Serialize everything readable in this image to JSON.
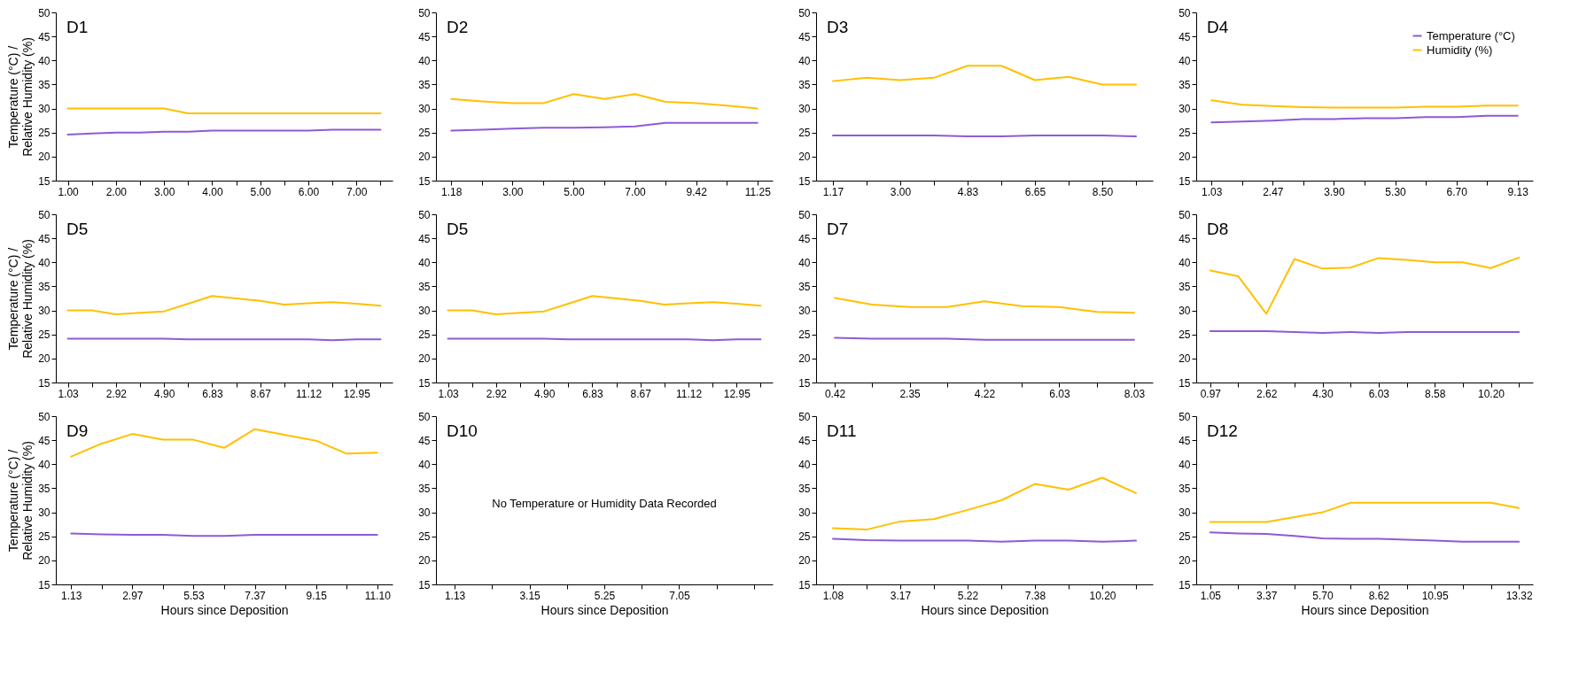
{
  "chart_data": [
    {
      "type": "line",
      "title": "D1",
      "ylabel": "Temperature (°C) / Relative Humidity (%)",
      "ylim": [
        15,
        50
      ],
      "yticks": [
        15,
        20,
        25,
        30,
        35,
        40,
        45,
        50
      ],
      "grid": false,
      "categories": [
        "1.00",
        null,
        "2.00",
        null,
        "3.00",
        null,
        "4.00",
        null,
        "5.00",
        null,
        "6.00",
        null,
        "7.00",
        null
      ],
      "series": [
        {
          "color": "#8e5bd6",
          "values": [
            24.6,
            24.8,
            25,
            25,
            25.2,
            25.2,
            25.4,
            25.4,
            25.4,
            25.4,
            25.4,
            25.6,
            25.6,
            25.6
          ]
        },
        {
          "color": "#ffc000",
          "values": [
            30,
            30,
            30,
            30,
            30,
            29,
            29,
            29,
            29,
            29,
            29,
            29,
            29,
            29
          ]
        }
      ]
    },
    {
      "type": "line",
      "title": "D2",
      "ylim": [
        15,
        50
      ],
      "yticks": [
        15,
        20,
        25,
        30,
        35,
        40,
        45,
        50
      ],
      "grid": false,
      "categories": [
        "1.18",
        null,
        "3.00",
        null,
        "5.00",
        null,
        "7.00",
        null,
        "9.42",
        null,
        "11.25"
      ],
      "series": [
        {
          "color": "#8e5bd6",
          "values": [
            25.4,
            25.6,
            25.8,
            26,
            26,
            26.1,
            26.3,
            27,
            27,
            27,
            27
          ]
        },
        {
          "color": "#ffc000",
          "values": [
            32,
            31.5,
            31.1,
            31.1,
            33,
            32,
            33,
            31.4,
            31.1,
            30.6,
            30
          ]
        }
      ]
    },
    {
      "type": "line",
      "title": "D3",
      "ylim": [
        15,
        50
      ],
      "yticks": [
        15,
        20,
        25,
        30,
        35,
        40,
        45,
        50
      ],
      "grid": false,
      "categories": [
        "1.17",
        null,
        "3.00",
        null,
        "4.83",
        null,
        "6.65",
        null,
        "8.50",
        null
      ],
      "series": [
        {
          "color": "#8e5bd6",
          "values": [
            24.4,
            24.4,
            24.4,
            24.4,
            24.2,
            24.2,
            24.4,
            24.4,
            24.4,
            24.2
          ]
        },
        {
          "color": "#ffc000",
          "values": [
            35.7,
            36.4,
            35.9,
            36.4,
            38.9,
            38.9,
            35.9,
            36.6,
            35,
            35
          ]
        }
      ]
    },
    {
      "type": "line",
      "title": "D4",
      "ylim": [
        15,
        50
      ],
      "yticks": [
        15,
        20,
        25,
        30,
        35,
        40,
        45,
        50
      ],
      "grid": false,
      "legend": "top right",
      "categories": [
        "1.03",
        null,
        "2.47",
        null,
        "3.90",
        null,
        "5.30",
        null,
        "6.70",
        null,
        "9.13"
      ],
      "series": [
        {
          "name": "Temperature (°C)",
          "color": "#8e5bd6",
          "values": [
            27.1,
            27.3,
            27.5,
            27.8,
            27.8,
            28,
            28,
            28.2,
            28.2,
            28.5,
            28.5
          ]
        },
        {
          "name": "Humidity (%)",
          "color": "#ffc000",
          "values": [
            31.7,
            30.8,
            30.5,
            30.3,
            30.2,
            30.2,
            30.2,
            30.4,
            30.4,
            30.6,
            30.6
          ]
        }
      ]
    },
    {
      "type": "line",
      "title": "D5",
      "ylabel": "Temperature (°C) / Relative Humidity (%)",
      "ylim": [
        15,
        50
      ],
      "yticks": [
        15,
        20,
        25,
        30,
        35,
        40,
        45,
        50
      ],
      "grid": false,
      "categories": [
        "1.03",
        null,
        "2.92",
        null,
        "4.90",
        null,
        "6.83",
        null,
        "8.67",
        null,
        "11.12",
        null,
        "12.95",
        null
      ],
      "series": [
        {
          "color": "#8e5bd6",
          "values": [
            24.1,
            24.1,
            24.1,
            24.1,
            24.1,
            24,
            24,
            24,
            24,
            24,
            24,
            23.8,
            24,
            24
          ]
        },
        {
          "color": "#ffc000",
          "values": [
            30,
            30,
            29.2,
            29.5,
            29.8,
            31.4,
            33,
            32.5,
            32,
            31.2,
            31.5,
            31.7,
            31.4,
            31
          ]
        }
      ]
    },
    {
      "type": "line",
      "title": "D5",
      "ylim": [
        15,
        50
      ],
      "yticks": [
        15,
        20,
        25,
        30,
        35,
        40,
        45,
        50
      ],
      "grid": false,
      "categories": [
        "1.03",
        null,
        "2.92",
        null,
        "4.90",
        null,
        "6.83",
        null,
        "8.67",
        null,
        "11.12",
        null,
        "12.95",
        null
      ],
      "series": [
        {
          "color": "#8e5bd6",
          "values": [
            24.1,
            24.1,
            24.1,
            24.1,
            24.1,
            24,
            24,
            24,
            24,
            24,
            24,
            23.8,
            24,
            24
          ]
        },
        {
          "color": "#ffc000",
          "values": [
            30,
            30,
            29.2,
            29.5,
            29.8,
            31.4,
            33,
            32.5,
            32,
            31.2,
            31.5,
            31.7,
            31.4,
            31
          ]
        }
      ]
    },
    {
      "type": "line",
      "title": "D7",
      "ylim": [
        15,
        50
      ],
      "yticks": [
        15,
        20,
        25,
        30,
        35,
        40,
        45,
        50
      ],
      "grid": false,
      "categories": [
        "0.42",
        null,
        "2.35",
        null,
        "4.22",
        null,
        "6.03",
        null,
        "8.03"
      ],
      "series": [
        {
          "color": "#8e5bd6",
          "values": [
            24.3,
            24.1,
            24.1,
            24.1,
            23.9,
            23.9,
            23.9,
            23.9,
            23.9
          ]
        },
        {
          "color": "#ffc000",
          "values": [
            32.6,
            31.2,
            30.7,
            30.7,
            31.9,
            30.9,
            30.7,
            29.7,
            29.5
          ]
        }
      ]
    },
    {
      "type": "line",
      "title": "D8",
      "ylim": [
        15,
        50
      ],
      "yticks": [
        15,
        20,
        25,
        30,
        35,
        40,
        45,
        50
      ],
      "grid": false,
      "categories": [
        "0.97",
        null,
        "2.62",
        null,
        "4.30",
        null,
        "6.03",
        null,
        "8.58",
        null,
        "10.20",
        null
      ],
      "series": [
        {
          "color": "#8e5bd6",
          "values": [
            25.7,
            25.7,
            25.7,
            25.5,
            25.3,
            25.5,
            25.3,
            25.5,
            25.5,
            25.5,
            25.5,
            25.5
          ]
        },
        {
          "color": "#ffc000",
          "values": [
            38.3,
            37.1,
            29.3,
            40.7,
            38.7,
            38.9,
            40.9,
            40.5,
            40,
            40,
            38.8,
            41
          ]
        }
      ]
    },
    {
      "type": "line",
      "title": "D9",
      "ylabel": "Temperature (°C) / Relative Humidity (%)",
      "xlabel": "Hours since Deposition",
      "ylim": [
        15,
        50
      ],
      "yticks": [
        15,
        20,
        25,
        30,
        35,
        40,
        45,
        50
      ],
      "grid": false,
      "categories": [
        "1.13",
        null,
        "2.97",
        null,
        "5.53",
        null,
        "7.37",
        null,
        "9.15",
        null,
        "11.10"
      ],
      "series": [
        {
          "color": "#8e5bd6",
          "values": [
            25.6,
            25.4,
            25.3,
            25.3,
            25.1,
            25.1,
            25.3,
            25.3,
            25.3,
            25.3,
            25.3
          ]
        },
        {
          "color": "#ffc000",
          "values": [
            41.6,
            44.3,
            46.3,
            45.1,
            45.1,
            43.4,
            47.3,
            46.1,
            44.9,
            42.2,
            42.4
          ]
        }
      ]
    },
    {
      "type": "line",
      "title": "D10",
      "xlabel": "Hours since Deposition",
      "ylim": [
        15,
        50
      ],
      "yticks": [
        15,
        20,
        25,
        30,
        35,
        40,
        45,
        50
      ],
      "grid": false,
      "categories": [
        "1.13",
        null,
        "3.15",
        null,
        "5.25",
        null,
        "7.05",
        null,
        null
      ],
      "annotations": [
        "No Temperature or Humidity Data Recorded"
      ]
    },
    {
      "type": "line",
      "title": "D11",
      "xlabel": "Hours since Deposition",
      "ylim": [
        15,
        50
      ],
      "yticks": [
        15,
        20,
        25,
        30,
        35,
        40,
        45,
        50
      ],
      "grid": false,
      "categories": [
        "1.08",
        null,
        "3.17",
        null,
        "5.22",
        null,
        "7.38",
        null,
        "10.20",
        null
      ],
      "series": [
        {
          "color": "#8e5bd6",
          "values": [
            24.5,
            24.2,
            24.1,
            24.1,
            24.1,
            23.9,
            24.1,
            24.1,
            23.9,
            24.1
          ]
        },
        {
          "color": "#ffc000",
          "values": [
            26.7,
            26.4,
            28.1,
            28.6,
            30.5,
            32.5,
            35.9,
            34.7,
            37.2,
            34
          ]
        }
      ]
    },
    {
      "type": "line",
      "title": "D12",
      "xlabel": "Hours since Deposition",
      "ylim": [
        15,
        50
      ],
      "yticks": [
        15,
        20,
        25,
        30,
        35,
        40,
        45,
        50
      ],
      "grid": false,
      "categories": [
        "1.05",
        null,
        "3.37",
        null,
        "5.70",
        null,
        "8.62",
        null,
        "10.95",
        null,
        null,
        "13.32"
      ],
      "series": [
        {
          "color": "#8e5bd6",
          "values": [
            25.8,
            25.6,
            25.5,
            25.1,
            24.6,
            24.5,
            24.5,
            24.3,
            24.1,
            23.9,
            23.9,
            23.9
          ]
        },
        {
          "color": "#ffc000",
          "values": [
            28,
            28,
            28,
            29,
            30,
            32,
            32,
            32,
            32,
            32,
            32,
            30.9
          ]
        }
      ]
    }
  ]
}
